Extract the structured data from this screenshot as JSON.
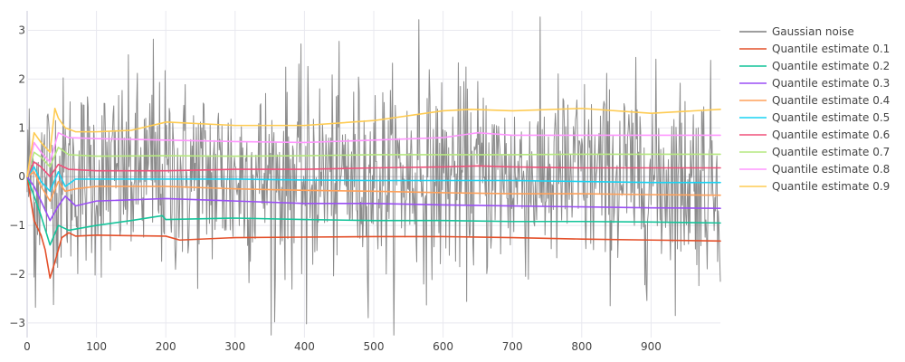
{
  "chart_data": {
    "type": "line",
    "title": "",
    "xlabel": "",
    "ylabel": "",
    "xlim": [
      0,
      1000
    ],
    "ylim": [
      -3.3,
      3.4
    ],
    "x_ticks": [
      0,
      100,
      200,
      300,
      400,
      500,
      600,
      700,
      800,
      900
    ],
    "x_tick_labels": [
      "0",
      "100",
      "200",
      "300",
      "400",
      "500",
      "600",
      "700",
      "800",
      "900"
    ],
    "y_ticks": [
      -3,
      -2,
      -1,
      0,
      1,
      2,
      3
    ],
    "y_tick_labels": [
      "−3",
      "−2",
      "−1",
      "0",
      "1",
      "2",
      "3"
    ],
    "grid": true,
    "legend_position": "right",
    "noise": {
      "name": "Gaussian noise",
      "color": "#7f7f7f",
      "n": 1000,
      "std": 1,
      "notable_points": [
        {
          "x": 565,
          "y": 3.22
        },
        {
          "x": 182,
          "y": 2.82
        },
        {
          "x": 357,
          "y": -2.98
        },
        {
          "x": 403,
          "y": -3.02
        },
        {
          "x": 12,
          "y": -2.68
        },
        {
          "x": 1000,
          "y": -2.15
        }
      ]
    },
    "series": [
      {
        "name": "Quantile estimate 0.1",
        "color": "#e4502a",
        "x": [
          0,
          10,
          20,
          26,
          33,
          40,
          50,
          60,
          70,
          100,
          200,
          220,
          300,
          400,
          500,
          600,
          700,
          800,
          900,
          1000
        ],
        "values": [
          0,
          -0.9,
          -1.2,
          -1.5,
          -2.08,
          -1.75,
          -1.25,
          -1.15,
          -1.22,
          -1.2,
          -1.22,
          -1.3,
          -1.25,
          -1.24,
          -1.23,
          -1.23,
          -1.25,
          -1.28,
          -1.3,
          -1.32
        ]
      },
      {
        "name": "Quantile estimate 0.2",
        "color": "#14c49a",
        "x": [
          0,
          10,
          20,
          33,
          45,
          60,
          100,
          150,
          195,
          200,
          300,
          400,
          500,
          600,
          700,
          800,
          900,
          1000
        ],
        "values": [
          0,
          -0.4,
          -0.8,
          -1.4,
          -1.0,
          -1.1,
          -1.0,
          -0.9,
          -0.8,
          -0.88,
          -0.85,
          -0.88,
          -0.9,
          -0.9,
          -0.92,
          -0.92,
          -0.93,
          -0.95
        ]
      },
      {
        "name": "Quantile estimate 0.3",
        "color": "#9b4ff5",
        "x": [
          0,
          10,
          20,
          33,
          45,
          55,
          70,
          100,
          200,
          300,
          400,
          500,
          600,
          700,
          800,
          900,
          1000
        ],
        "values": [
          0,
          -0.2,
          -0.5,
          -0.9,
          -0.6,
          -0.4,
          -0.6,
          -0.5,
          -0.45,
          -0.5,
          -0.55,
          -0.55,
          -0.58,
          -0.6,
          -0.62,
          -0.64,
          -0.65
        ]
      },
      {
        "name": "Quantile estimate 0.4",
        "color": "#ffa15a",
        "x": [
          0,
          10,
          20,
          33,
          45,
          55,
          70,
          100,
          200,
          300,
          400,
          500,
          600,
          700,
          800,
          900,
          1000
        ],
        "values": [
          0,
          0.1,
          -0.2,
          -0.5,
          -0.1,
          -0.3,
          -0.25,
          -0.2,
          -0.2,
          -0.25,
          -0.28,
          -0.3,
          -0.33,
          -0.35,
          -0.35,
          -0.37,
          -0.38
        ]
      },
      {
        "name": "Quantile estimate 0.5",
        "color": "#19d3f3",
        "x": [
          0,
          10,
          20,
          33,
          45,
          55,
          70,
          100,
          200,
          300,
          400,
          500,
          600,
          700,
          800,
          900,
          1000
        ],
        "values": [
          0,
          0.2,
          -0.1,
          -0.3,
          0.1,
          -0.2,
          -0.05,
          -0.05,
          -0.05,
          -0.05,
          -0.07,
          -0.08,
          -0.08,
          -0.08,
          -0.1,
          -0.12,
          -0.12
        ]
      },
      {
        "name": "Quantile estimate 0.6",
        "color": "#f0507a",
        "x": [
          0,
          10,
          20,
          33,
          45,
          60,
          100,
          200,
          300,
          400,
          500,
          600,
          650,
          700,
          800,
          900,
          1000
        ],
        "values": [
          0,
          0.3,
          0.2,
          0.0,
          0.25,
          0.15,
          0.12,
          0.12,
          0.15,
          0.15,
          0.18,
          0.2,
          0.22,
          0.2,
          0.18,
          0.18,
          0.18
        ]
      },
      {
        "name": "Quantile estimate 0.7",
        "color": "#b6e880",
        "x": [
          0,
          10,
          20,
          33,
          45,
          60,
          100,
          200,
          300,
          400,
          500,
          600,
          700,
          800,
          900,
          1000
        ],
        "values": [
          0,
          0.5,
          0.4,
          0.2,
          0.6,
          0.45,
          0.42,
          0.43,
          0.42,
          0.43,
          0.45,
          0.45,
          0.45,
          0.46,
          0.46,
          0.46
        ]
      },
      {
        "name": "Quantile estimate 0.8",
        "color": "#ff97ff",
        "x": [
          0,
          10,
          20,
          33,
          45,
          60,
          100,
          200,
          300,
          400,
          500,
          600,
          650,
          700,
          800,
          900,
          1000
        ],
        "values": [
          0,
          0.7,
          0.5,
          0.3,
          0.9,
          0.8,
          0.78,
          0.75,
          0.72,
          0.7,
          0.75,
          0.8,
          0.9,
          0.85,
          0.85,
          0.85,
          0.85
        ]
      },
      {
        "name": "Quantile estimate 0.9",
        "color": "#fecb52",
        "x": [
          0,
          10,
          20,
          33,
          40,
          45,
          55,
          70,
          100,
          150,
          195,
          200,
          300,
          400,
          500,
          600,
          640,
          700,
          800,
          900,
          1000
        ],
        "values": [
          0,
          0.9,
          0.7,
          0.5,
          1.4,
          1.2,
          1.0,
          0.92,
          0.92,
          0.95,
          1.1,
          1.12,
          1.05,
          1.05,
          1.15,
          1.35,
          1.38,
          1.35,
          1.4,
          1.3,
          1.38
        ]
      }
    ]
  }
}
